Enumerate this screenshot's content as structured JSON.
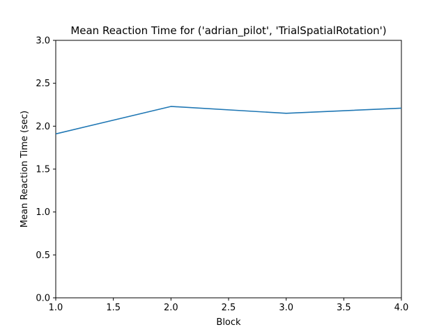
{
  "chart_data": {
    "type": "line",
    "title": "Mean Reaction Time for ('adrian_pilot', 'TrialSpatialRotation')",
    "xlabel": "Block",
    "ylabel": "Mean Reaction Time (sec)",
    "xlim": [
      1.0,
      4.0
    ],
    "ylim": [
      0.0,
      3.0
    ],
    "x_ticks": [
      "1.0",
      "1.5",
      "2.0",
      "2.5",
      "3.0",
      "3.5",
      "4.0"
    ],
    "y_ticks": [
      "0.0",
      "0.5",
      "1.0",
      "1.5",
      "2.0",
      "2.5",
      "3.0"
    ],
    "grid": false,
    "legend": "none",
    "series": [
      {
        "color": "#1f77b4",
        "x": [
          1,
          2,
          3,
          4
        ],
        "y": [
          1.91,
          2.23,
          2.15,
          2.21
        ]
      }
    ]
  }
}
